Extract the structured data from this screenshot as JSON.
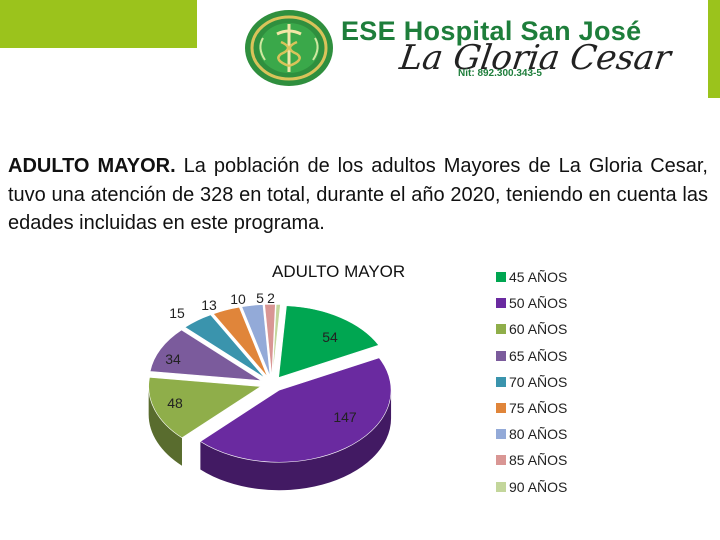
{
  "header": {
    "brand_name": "ESE Hospital San José",
    "brand_script": "La Gloria Cesar",
    "nit": "Nit: 892.300.343-5",
    "accent_color": "#9bc31c",
    "brand_color": "#1e7e3b",
    "logo": "hospital-emblem-with-caduceus"
  },
  "intro": {
    "lead": "ADULTO MAYOR.",
    "body": " La población de los adultos Mayores de La Gloria Cesar, tuvo una atención de 328 en total, durante el año 2020, teniendo en cuenta las edades incluidas en este programa."
  },
  "chart_data": {
    "type": "pie",
    "style": "3d-exploded",
    "title": "ADULTO MAYOR",
    "legend_position": "right",
    "categories": [
      "45 AÑOS",
      "50 AÑOS",
      "60 AÑOS",
      "65 AÑOS",
      "70 AÑOS",
      "75 AÑOS",
      "80 AÑOS",
      "85 AÑOS",
      "90 AÑOS"
    ],
    "values": [
      54,
      147,
      48,
      34,
      15,
      13,
      10,
      5,
      2
    ],
    "colors": [
      "#00a651",
      "#6a2aa0",
      "#8fae4a",
      "#7b5b9c",
      "#3a94ad",
      "#e0853a",
      "#93aad8",
      "#d99694",
      "#c3d69b"
    ],
    "total": 328
  }
}
